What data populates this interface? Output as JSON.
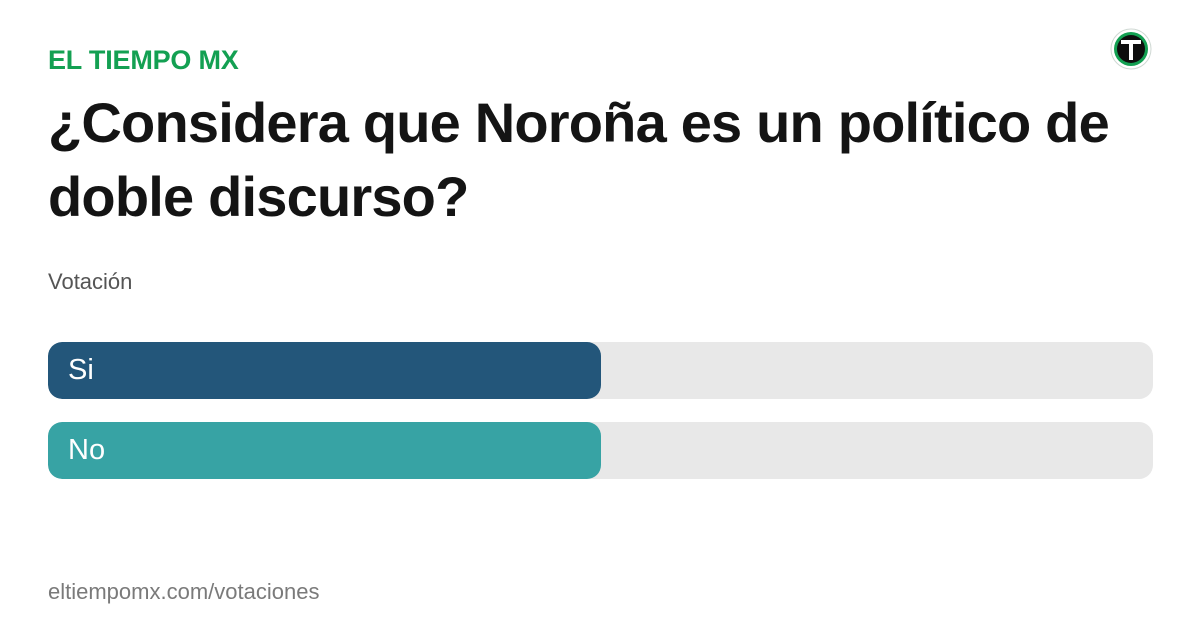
{
  "brand": {
    "name": "EL TIEMPO MX",
    "color": "#13a052"
  },
  "poll": {
    "question": "¿Considera que Noroña es un político de doble discurso?",
    "subtitle": "Votación",
    "options": [
      {
        "label": "Si",
        "share": 0.5,
        "color": "#23567a"
      },
      {
        "label": "No",
        "share": 0.5,
        "color": "#37a3a4"
      }
    ]
  },
  "footer": {
    "url": "eltiempomx.com/votaciones"
  },
  "logo": {
    "icon": "el-tiempo-t-logo-icon"
  }
}
